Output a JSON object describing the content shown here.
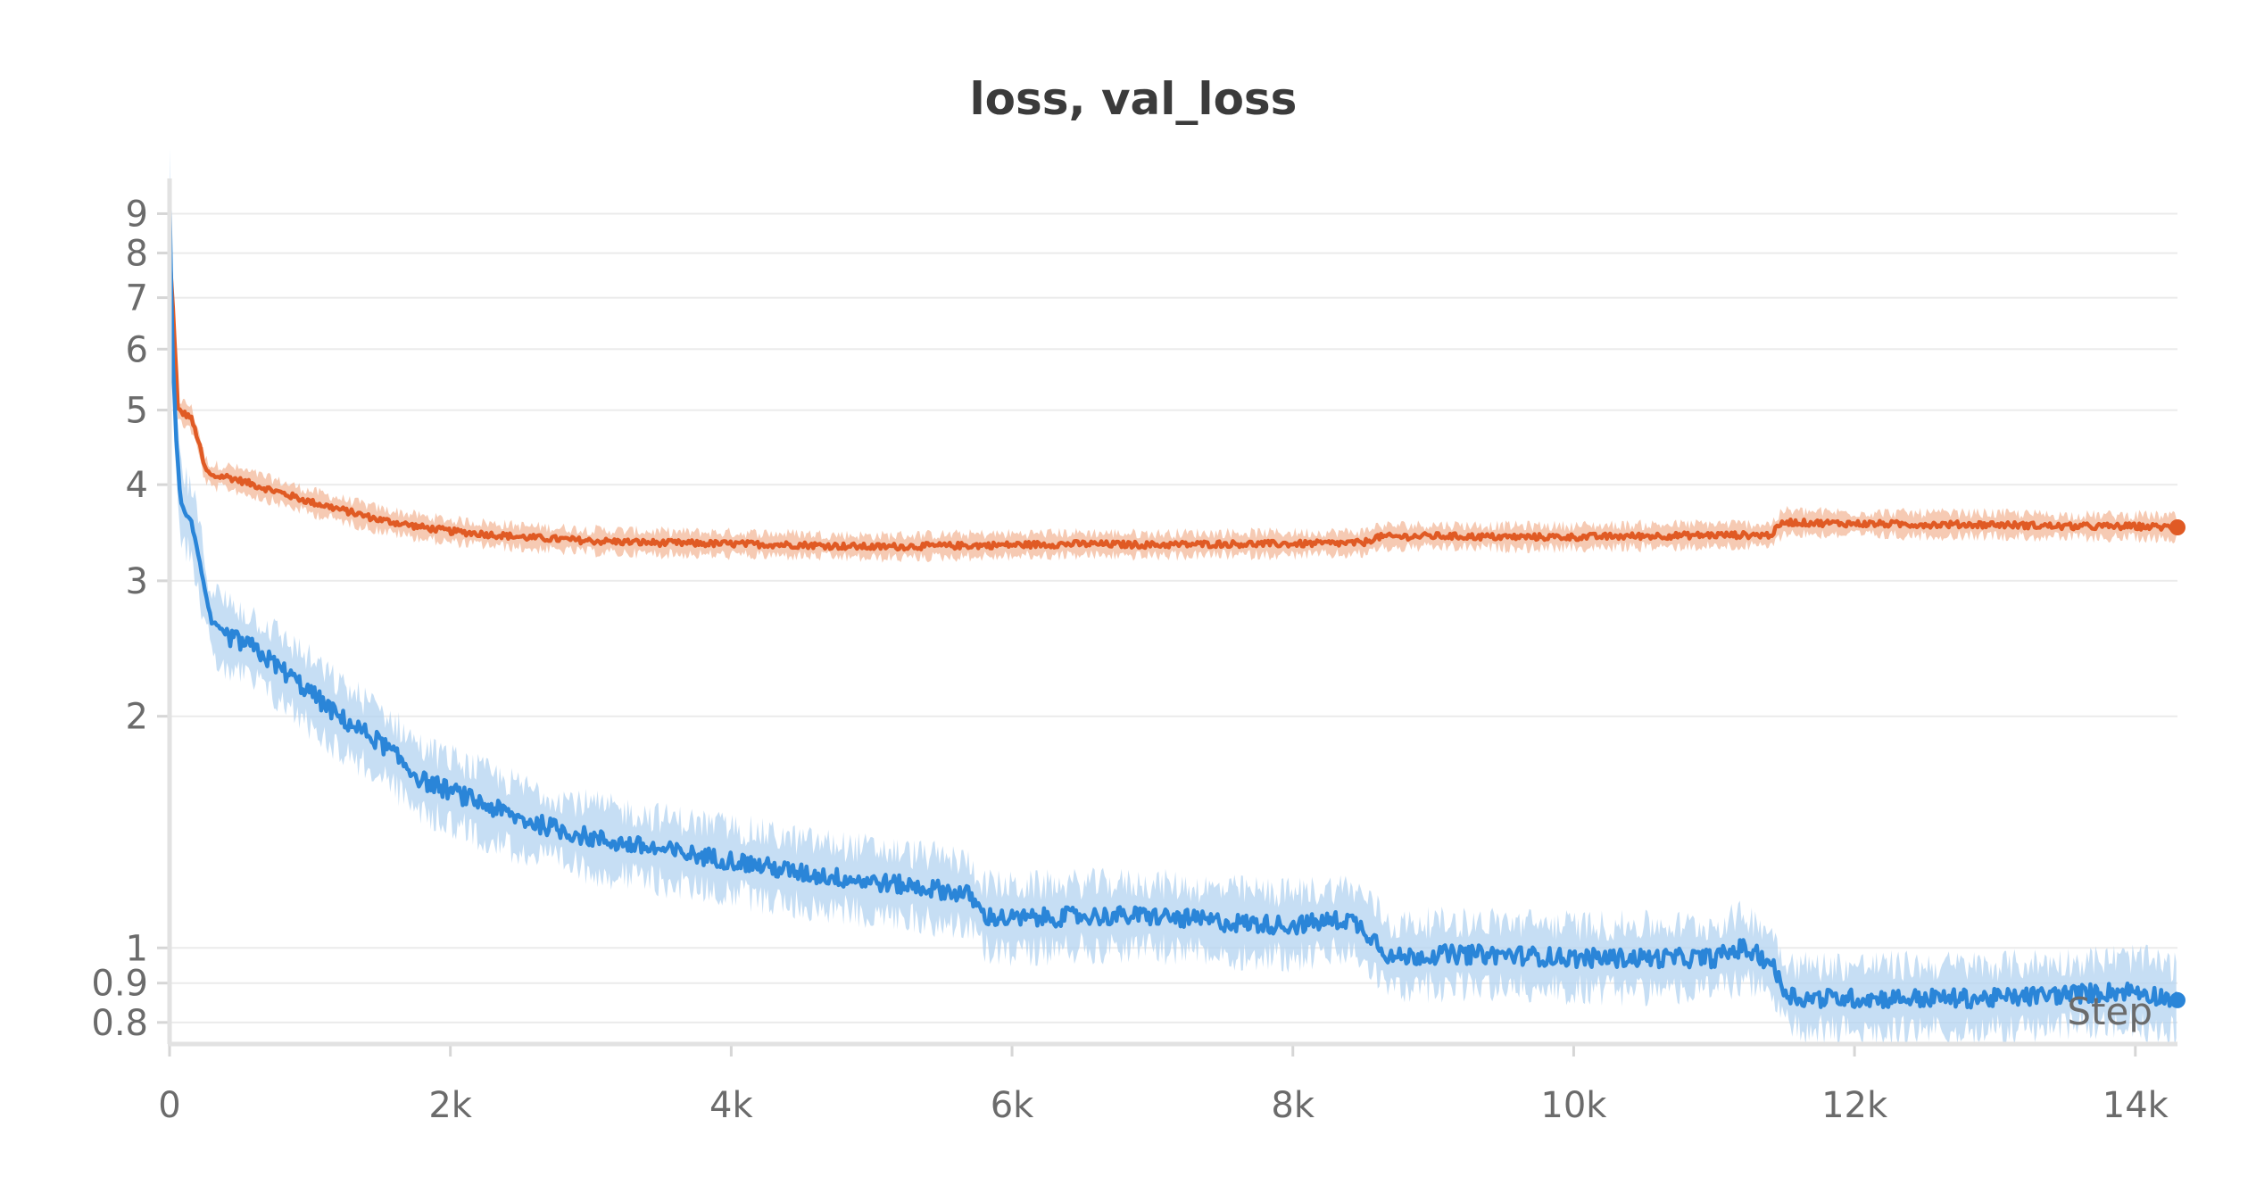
{
  "chart_data": {
    "type": "line",
    "title": "loss, val_loss",
    "xlabel": "Step",
    "ylabel": "",
    "yscale": "log",
    "xlim": [
      0,
      14300
    ],
    "ylim": [
      0.75,
      10
    ],
    "x_ticks": [
      {
        "value": 0,
        "label": "0"
      },
      {
        "value": 2000,
        "label": "2k"
      },
      {
        "value": 4000,
        "label": "4k"
      },
      {
        "value": 6000,
        "label": "6k"
      },
      {
        "value": 8000,
        "label": "8k"
      },
      {
        "value": 10000,
        "label": "10k"
      },
      {
        "value": 12000,
        "label": "12k"
      },
      {
        "value": 14000,
        "label": "14k"
      }
    ],
    "y_ticks": [
      {
        "value": 0.8,
        "label": "0.8"
      },
      {
        "value": 0.9,
        "label": "0.9"
      },
      {
        "value": 1,
        "label": "1"
      },
      {
        "value": 2,
        "label": "2"
      },
      {
        "value": 3,
        "label": "3"
      },
      {
        "value": 4,
        "label": "4"
      },
      {
        "value": 5,
        "label": "5"
      },
      {
        "value": 6,
        "label": "6"
      },
      {
        "value": 7,
        "label": "7"
      },
      {
        "value": 8,
        "label": "8"
      },
      {
        "value": 9,
        "label": "9"
      }
    ],
    "grid": true,
    "legend": "none",
    "series": [
      {
        "color": "#e05a24",
        "band_color": "#f3b89a",
        "x": [
          0,
          30,
          60,
          100,
          150,
          200,
          250,
          300,
          400,
          500,
          600,
          800,
          1000,
          1200,
          1500,
          1800,
          2000,
          2500,
          3000,
          3500,
          4000,
          4500,
          5000,
          5500,
          6000,
          6500,
          7000,
          7500,
          8000,
          8500,
          8600,
          9000,
          9500,
          10000,
          10500,
          11000,
          11400,
          11500,
          11600,
          12000,
          12500,
          13000,
          13500,
          14000,
          14300
        ],
        "y": [
          8.0,
          6.5,
          5.0,
          4.95,
          4.9,
          4.6,
          4.2,
          4.1,
          4.1,
          4.05,
          4.0,
          3.9,
          3.8,
          3.72,
          3.6,
          3.52,
          3.48,
          3.42,
          3.38,
          3.36,
          3.35,
          3.34,
          3.32,
          3.33,
          3.34,
          3.35,
          3.34,
          3.35,
          3.35,
          3.36,
          3.42,
          3.43,
          3.42,
          3.42,
          3.43,
          3.44,
          3.44,
          3.58,
          3.57,
          3.56,
          3.55,
          3.55,
          3.53,
          3.53,
          3.52
        ]
      },
      {
        "color": "#2a85d8",
        "band_color": "#b3d3f0",
        "x": [
          0,
          20,
          50,
          80,
          100,
          150,
          200,
          250,
          300,
          350,
          400,
          500,
          600,
          800,
          1000,
          1200,
          1500,
          1800,
          2000,
          2500,
          3000,
          3500,
          4000,
          4500,
          5000,
          5500,
          5700,
          5800,
          6000,
          6500,
          7000,
          7500,
          8000,
          8400,
          8500,
          8600,
          8700,
          9000,
          9500,
          10000,
          10500,
          11000,
          11200,
          11400,
          11500,
          11600,
          12000,
          12500,
          13000,
          13500,
          14000,
          14300
        ],
        "y": [
          9.5,
          6.0,
          4.5,
          3.8,
          3.7,
          3.6,
          3.3,
          2.9,
          2.65,
          2.6,
          2.55,
          2.5,
          2.45,
          2.3,
          2.15,
          2.0,
          1.85,
          1.65,
          1.6,
          1.47,
          1.39,
          1.34,
          1.3,
          1.25,
          1.22,
          1.19,
          1.17,
          1.1,
          1.09,
          1.1,
          1.1,
          1.08,
          1.07,
          1.09,
          1.06,
          1.02,
          0.97,
          0.98,
          0.98,
          0.97,
          0.97,
          0.97,
          1.0,
          0.96,
          0.88,
          0.86,
          0.86,
          0.86,
          0.86,
          0.87,
          0.88,
          0.855
        ]
      }
    ]
  }
}
